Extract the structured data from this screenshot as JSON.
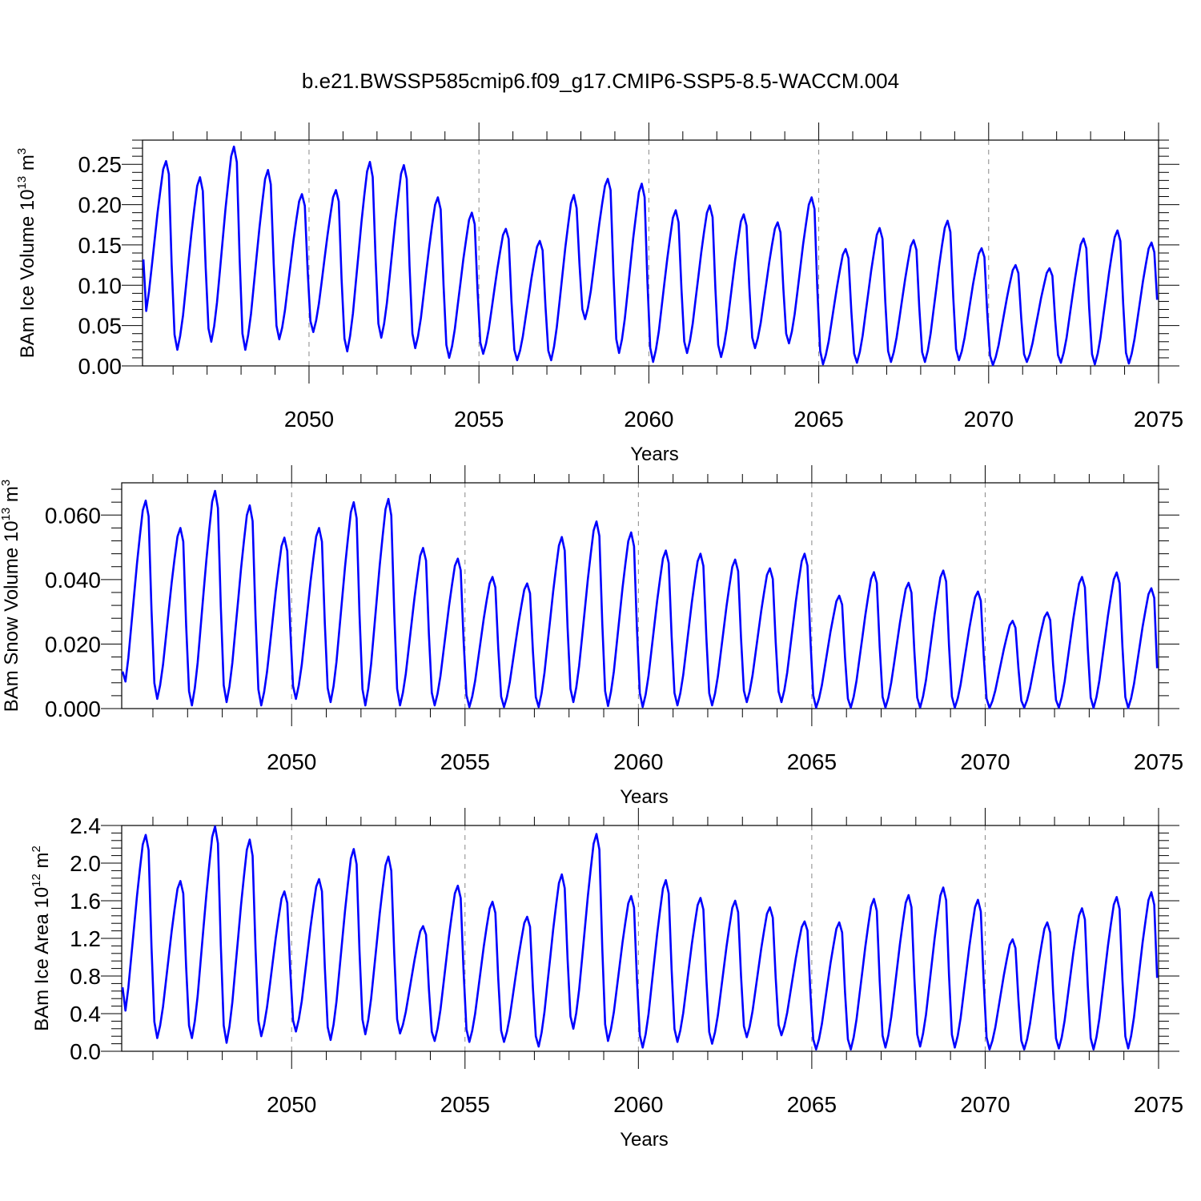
{
  "figure": {
    "title": "b.e21.BWSSP585cmip6.f09_g17.CMIP6-SSP5-8.5-WACCM.004",
    "line_color": "#0000ff",
    "grid_color": "#888888"
  },
  "chart_data": [
    {
      "type": "line",
      "xlabel": "Years",
      "ylabel": {
        "text": "BAm Ice Volume 10",
        "exp": "13",
        "unit": " m",
        "unit_exp": "3"
      },
      "xlim": [
        2045.1,
        2075
      ],
      "ylim": [
        0,
        0.28
      ],
      "xticks": [
        2050,
        2055,
        2060,
        2065,
        2070,
        2075
      ],
      "xtick_labels": [
        "2050",
        "2055",
        "2060",
        "2065",
        "2070",
        "2075"
      ],
      "yticks": [
        0,
        0.05,
        0.1,
        0.15,
        0.2,
        0.25
      ],
      "ytick_labels": [
        "0.00",
        "0.05",
        "0.10",
        "0.15",
        "0.20",
        "0.25"
      ],
      "x_start": 2045.125,
      "x_step": 0.0833333,
      "annual_max": [
        0.254,
        0.234,
        0.272,
        0.243,
        0.213,
        0.218,
        0.253,
        0.249,
        0.209,
        0.19,
        0.17,
        0.155,
        0.212,
        0.232,
        0.226,
        0.193,
        0.199,
        0.188,
        0.178,
        0.209,
        0.145,
        0.171,
        0.156,
        0.18,
        0.146,
        0.125,
        0.121,
        0.158,
        0.168,
        0.153
      ],
      "annual_min": [
        0.052,
        0.02,
        0.03,
        0.02,
        0.033,
        0.042,
        0.018,
        0.035,
        0.022,
        0.01,
        0.015,
        0.007,
        0.007,
        0.058,
        0.016,
        0.005,
        0.016,
        0.011,
        0.022,
        0.028,
        0.002,
        0.004,
        0.005,
        0.005,
        0.007,
        0.001,
        0.005,
        0.004,
        0.002,
        0.003
      ],
      "initial": 0.132,
      "final": 0.082
    },
    {
      "type": "line",
      "xlabel": "Years",
      "ylabel": {
        "text": "BAm Snow Volume 10",
        "exp": "13",
        "unit": " m",
        "unit_exp": "3"
      },
      "xlim": [
        2045.1,
        2075
      ],
      "ylim": [
        0,
        0.07
      ],
      "xticks": [
        2050,
        2055,
        2060,
        2065,
        2070,
        2075
      ],
      "xtick_labels": [
        "2050",
        "2055",
        "2060",
        "2065",
        "2070",
        "2075"
      ],
      "yticks": [
        0,
        0.02,
        0.04,
        0.06
      ],
      "ytick_labels": [
        "0.000",
        "0.020",
        "0.040",
        "0.060"
      ],
      "x_start": 2045.125,
      "x_step": 0.0833333,
      "annual_max": [
        0.0645,
        0.056,
        0.0675,
        0.063,
        0.053,
        0.056,
        0.064,
        0.065,
        0.0498,
        0.0465,
        0.0408,
        0.0388,
        0.0532,
        0.058,
        0.0546,
        0.049,
        0.048,
        0.0462,
        0.0435,
        0.048,
        0.035,
        0.0423,
        0.039,
        0.0428,
        0.0363,
        0.0272,
        0.0298,
        0.0408,
        0.0422,
        0.0373
      ],
      "annual_min": [
        0.0035,
        0.003,
        0.001,
        0.002,
        0.001,
        0.003,
        0.002,
        0.001,
        0.001,
        0.001,
        0.0005,
        0.0005,
        0.0005,
        0.002,
        0.0008,
        0.0005,
        0.001,
        0.001,
        0.002,
        0.002,
        0.0003,
        0.0003,
        0.0003,
        0.0003,
        0.0003,
        0.0002,
        0.0003,
        0.0003,
        0.0002,
        0.0002
      ],
      "initial": 0.0115,
      "final": 0.0125
    },
    {
      "type": "line",
      "xlabel": "Years",
      "ylabel": {
        "text": "BAm Ice Area 10",
        "exp": "12",
        "unit": " m",
        "unit_exp": "2"
      },
      "xlim": [
        2045.1,
        2075
      ],
      "ylim": [
        0,
        2.4
      ],
      "xticks": [
        2050,
        2055,
        2060,
        2065,
        2070,
        2075
      ],
      "xtick_labels": [
        "2050",
        "2055",
        "2060",
        "2065",
        "2070",
        "2075"
      ],
      "yticks": [
        0,
        0.4,
        0.8,
        1.2,
        1.6,
        2.0,
        2.4
      ],
      "ytick_labels": [
        "0.0",
        "0.4",
        "0.8",
        "1.2",
        "1.6",
        "2.0",
        "2.4"
      ],
      "x_start": 2045.125,
      "x_step": 0.0833333,
      "annual_max": [
        2.3,
        1.81,
        2.39,
        2.25,
        1.7,
        1.83,
        2.15,
        2.07,
        1.33,
        1.76,
        1.59,
        1.43,
        1.88,
        2.31,
        1.65,
        1.82,
        1.63,
        1.6,
        1.53,
        1.38,
        1.37,
        1.62,
        1.66,
        1.74,
        1.61,
        1.19,
        1.37,
        1.52,
        1.64,
        1.69
      ],
      "annual_min": [
        0.27,
        0.14,
        0.14,
        0.09,
        0.16,
        0.21,
        0.12,
        0.18,
        0.19,
        0.11,
        0.1,
        0.1,
        0.05,
        0.24,
        0.11,
        0.04,
        0.1,
        0.08,
        0.15,
        0.17,
        0.02,
        0.02,
        0.04,
        0.05,
        0.04,
        0.02,
        0.02,
        0.03,
        0.02,
        0.03
      ],
      "initial": 0.68,
      "final": 0.78
    }
  ]
}
